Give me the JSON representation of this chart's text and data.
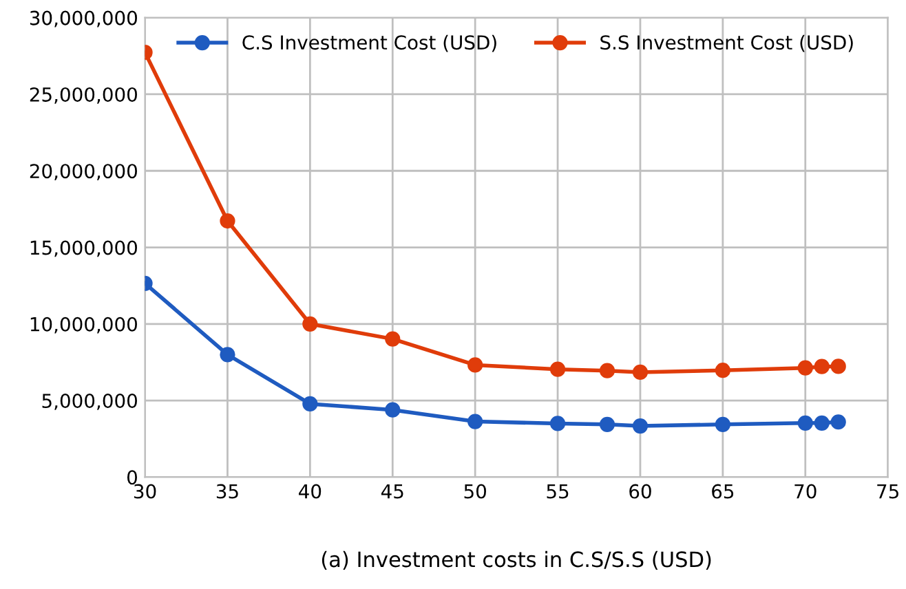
{
  "chart_data": {
    "type": "line",
    "x": [
      30,
      35,
      40,
      45,
      50,
      55,
      58,
      60,
      65,
      70,
      71,
      72
    ],
    "series": [
      {
        "name": "C.S Investment Cost (USD)",
        "color": "#1f5bc0",
        "values": [
          12650000,
          8000000,
          4780000,
          4390000,
          3630000,
          3500000,
          3440000,
          3340000,
          3440000,
          3530000,
          3530000,
          3600000
        ]
      },
      {
        "name": "S.S Investment Cost (USD)",
        "color": "#e03c0a",
        "values": [
          27730000,
          16730000,
          10000000,
          9020000,
          7320000,
          7040000,
          6950000,
          6850000,
          6970000,
          7130000,
          7220000,
          7230000
        ]
      }
    ],
    "xlim": [
      30,
      75
    ],
    "xticks": [
      30,
      35,
      40,
      45,
      50,
      55,
      60,
      65,
      70,
      75
    ],
    "ylim": [
      0,
      30000000
    ],
    "yticks": [
      0,
      {
        "value": 5000000,
        "label": "5,000,000"
      },
      {
        "value": 10000000,
        "label": "10,000,000"
      },
      {
        "value": 15000000,
        "label": "15,000,000"
      },
      {
        "value": 20000000,
        "label": "20,000,000"
      },
      {
        "value": 25000000,
        "label": "25,000,000"
      },
      {
        "value": 30000000,
        "label": "30,000,000"
      }
    ],
    "grid": true,
    "legend": "top",
    "marker": "circle",
    "line_style": "solid",
    "annotations": [
      "(a) Investment costs in C.S/S.S (USD)"
    ]
  }
}
